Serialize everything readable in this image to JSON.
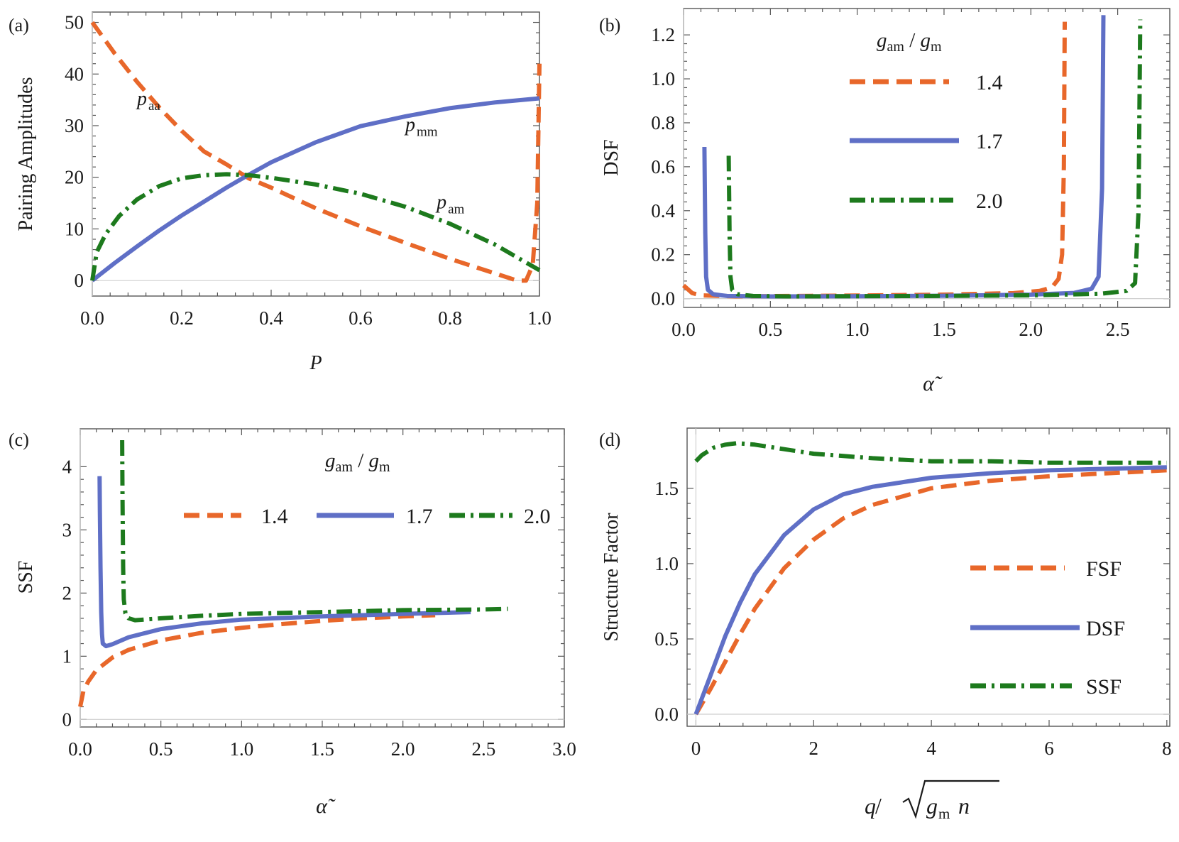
{
  "figure": {
    "panels": [
      "(a)",
      "(b)",
      "(c)",
      "(d)"
    ]
  },
  "chart_data": [
    {
      "type": "line",
      "panel": "(a)",
      "xlabel": "P",
      "ylabel": "Pairing Amplitudes",
      "xlim": [
        0,
        1
      ],
      "ylim": [
        -3,
        52
      ],
      "xticks": [
        0.0,
        0.2,
        0.4,
        0.6,
        0.8,
        1.0
      ],
      "xtick_labels": [
        "0.0",
        "0.2",
        "0.4",
        "0.6",
        "0.8",
        "1.0"
      ],
      "yticks": [
        0,
        10,
        20,
        30,
        40,
        50
      ],
      "ytick_labels": [
        "0",
        "10",
        "20",
        "30",
        "40",
        "50"
      ],
      "series": [
        {
          "name": "p_aa",
          "label_main": "p",
          "label_sub": "aa",
          "style": "dashed",
          "color": "#e8672a",
          "x": [
            0,
            0.05,
            0.1,
            0.15,
            0.2,
            0.25,
            0.3,
            0.35,
            0.4,
            0.5,
            0.6,
            0.7,
            0.8,
            0.9,
            0.95,
            0.97,
            0.985,
            0.995,
            1.0
          ],
          "y": [
            50,
            44,
            38.5,
            33.5,
            29,
            25,
            22.5,
            19.8,
            18,
            14,
            10.5,
            7.3,
            4.2,
            1.4,
            0,
            0,
            3,
            15,
            42
          ]
        },
        {
          "name": "p_mm",
          "label_main": "p",
          "label_sub": "mm",
          "style": "solid",
          "color": "#5f6fc6",
          "x": [
            0,
            0.05,
            0.1,
            0.15,
            0.2,
            0.25,
            0.3,
            0.35,
            0.4,
            0.5,
            0.6,
            0.7,
            0.8,
            0.9,
            1.0
          ],
          "y": [
            0,
            3.4,
            6.6,
            9.7,
            12.6,
            15.3,
            18,
            20.5,
            22.9,
            26.8,
            29.9,
            31.8,
            33.4,
            34.5,
            35.3
          ]
        },
        {
          "name": "p_am",
          "label_main": "p",
          "label_sub": "am",
          "style": "dashdot",
          "color": "#1d7a1d",
          "x": [
            0,
            0.01,
            0.03,
            0.06,
            0.1,
            0.15,
            0.2,
            0.25,
            0.3,
            0.35,
            0.4,
            0.5,
            0.6,
            0.7,
            0.8,
            0.9,
            0.95,
            0.98,
            1.0
          ],
          "y": [
            0,
            5.5,
            9,
            12.5,
            15.7,
            18.3,
            19.8,
            20.4,
            20.6,
            20.4,
            19.9,
            18.6,
            16.8,
            14.3,
            11,
            7,
            4.5,
            3,
            2
          ]
        }
      ],
      "annotations": [
        {
          "series": "p_aa",
          "x": 0.1,
          "y": 34
        },
        {
          "series": "p_mm",
          "x": 0.7,
          "y": 29
        },
        {
          "series": "p_am",
          "x": 0.77,
          "y": 14
        }
      ]
    },
    {
      "type": "line",
      "panel": "(b)",
      "xlabel": "α̃",
      "ylabel": "DSF",
      "xlim": [
        0,
        2.8
      ],
      "ylim": [
        -0.04,
        1.32
      ],
      "xticks": [
        0.0,
        0.5,
        1.0,
        1.5,
        2.0,
        2.5
      ],
      "xtick_labels": [
        "0.0",
        "0.5",
        "1.0",
        "1.5",
        "2.0",
        "2.5"
      ],
      "yticks": [
        0.0,
        0.2,
        0.4,
        0.6,
        0.8,
        1.0,
        1.2
      ],
      "ytick_labels": [
        "0.0",
        "0.2",
        "0.4",
        "0.6",
        "0.8",
        "1.0",
        "1.2"
      ],
      "legend_title": "g_am / g_m",
      "legend_title_parts": {
        "g1": "g",
        "s1": "am",
        "slash": " / ",
        "g2": "g",
        "s2": "m"
      },
      "legend_position": "top-center",
      "series": [
        {
          "name": "1.4",
          "style": "dashed",
          "color": "#e8672a",
          "x": [
            0,
            0.05,
            0.1,
            0.3,
            0.6,
            1.0,
            1.5,
            1.9,
            2.05,
            2.12,
            2.16,
            2.18,
            2.19,
            2.195
          ],
          "y": [
            0.06,
            0.025,
            0.015,
            0.01,
            0.012,
            0.014,
            0.018,
            0.025,
            0.035,
            0.05,
            0.09,
            0.2,
            0.6,
            1.26
          ]
        },
        {
          "name": "1.7",
          "style": "solid",
          "color": "#5f6fc6",
          "x": [
            0.12,
            0.125,
            0.13,
            0.14,
            0.17,
            0.25,
            0.5,
            1.0,
            1.5,
            2.0,
            2.25,
            2.35,
            2.39,
            2.41,
            2.418
          ],
          "y": [
            0.69,
            0.3,
            0.1,
            0.04,
            0.02,
            0.012,
            0.01,
            0.011,
            0.013,
            0.018,
            0.026,
            0.045,
            0.1,
            0.5,
            1.29
          ]
        },
        {
          "name": "2.0",
          "style": "dashdot",
          "color": "#1d7a1d",
          "x": [
            0.26,
            0.265,
            0.27,
            0.28,
            0.31,
            0.4,
            0.6,
            1.0,
            1.5,
            2.0,
            2.4,
            2.55,
            2.6,
            2.62,
            2.63
          ],
          "y": [
            0.65,
            0.3,
            0.1,
            0.04,
            0.02,
            0.012,
            0.01,
            0.011,
            0.012,
            0.015,
            0.022,
            0.035,
            0.07,
            0.4,
            1.27
          ]
        }
      ]
    },
    {
      "type": "line",
      "panel": "(c)",
      "xlabel": "α̃",
      "ylabel": "SSF",
      "xlim": [
        0,
        3.0
      ],
      "ylim": [
        -0.12,
        4.6
      ],
      "xticks": [
        0.0,
        0.5,
        1.0,
        1.5,
        2.0,
        2.5,
        3.0
      ],
      "xtick_labels": [
        "0.0",
        "0.5",
        "1.0",
        "1.5",
        "2.0",
        "2.5",
        "3.0"
      ],
      "yticks": [
        0,
        1,
        2,
        3,
        4
      ],
      "ytick_labels": [
        "0",
        "1",
        "2",
        "3",
        "4"
      ],
      "legend_title": "g_am / g_m",
      "legend_title_parts": {
        "g1": "g",
        "s1": "am",
        "slash": " / ",
        "g2": "g",
        "s2": "m"
      },
      "legend_position": "top-right",
      "series": [
        {
          "name": "1.4",
          "style": "dashed",
          "color": "#e8672a",
          "x": [
            0,
            0.02,
            0.05,
            0.1,
            0.2,
            0.3,
            0.5,
            0.75,
            1.0,
            1.25,
            1.5,
            1.75,
            2.0,
            2.2
          ],
          "y": [
            0.2,
            0.45,
            0.6,
            0.78,
            0.98,
            1.1,
            1.25,
            1.37,
            1.45,
            1.51,
            1.56,
            1.6,
            1.63,
            1.65
          ]
        },
        {
          "name": "1.7",
          "style": "solid",
          "color": "#5f6fc6",
          "x": [
            0.12,
            0.122,
            0.126,
            0.13,
            0.135,
            0.14,
            0.16,
            0.2,
            0.3,
            0.5,
            0.75,
            1.0,
            1.5,
            2.0,
            2.42
          ],
          "y": [
            3.85,
            3.3,
            2.4,
            1.7,
            1.35,
            1.2,
            1.16,
            1.19,
            1.3,
            1.43,
            1.52,
            1.58,
            1.63,
            1.67,
            1.7
          ]
        },
        {
          "name": "2.0",
          "style": "dashdot",
          "color": "#1d7a1d",
          "x": [
            0.26,
            0.262,
            0.266,
            0.27,
            0.28,
            0.3,
            0.34,
            0.5,
            0.75,
            1.0,
            1.5,
            2.0,
            2.5,
            2.65
          ],
          "y": [
            4.42,
            3.5,
            2.4,
            1.9,
            1.68,
            1.6,
            1.57,
            1.6,
            1.64,
            1.67,
            1.7,
            1.73,
            1.74,
            1.75
          ]
        }
      ]
    },
    {
      "type": "line",
      "panel": "(d)",
      "xlabel_parts": {
        "q": "q",
        "slash": " / ",
        "g": "g",
        "sub": "m",
        "n": " n"
      },
      "ylabel": "Structure Factor",
      "xlim": [
        -0.15,
        8.05
      ],
      "ylim": [
        -0.08,
        1.9
      ],
      "xticks": [
        0,
        2,
        4,
        6,
        8
      ],
      "xtick_labels": [
        "0",
        "2",
        "4",
        "6",
        "8"
      ],
      "yticks": [
        0.0,
        0.5,
        1.0,
        1.5
      ],
      "ytick_labels": [
        "0.0",
        "0.5",
        "1.0",
        "1.5"
      ],
      "legend_position": "bottom-right",
      "series": [
        {
          "name": "FSF",
          "style": "dashed",
          "color": "#e8672a",
          "x": [
            0,
            0.25,
            0.5,
            0.75,
            1,
            1.5,
            2,
            2.5,
            3,
            4,
            5,
            6,
            7,
            8
          ],
          "y": [
            0,
            0.17,
            0.35,
            0.53,
            0.7,
            0.97,
            1.16,
            1.3,
            1.39,
            1.5,
            1.55,
            1.58,
            1.6,
            1.62
          ]
        },
        {
          "name": "DSF",
          "style": "solid",
          "color": "#5f6fc6",
          "x": [
            0,
            0.25,
            0.5,
            0.75,
            1,
            1.5,
            2,
            2.5,
            3,
            4,
            5,
            6,
            7,
            8
          ],
          "y": [
            0,
            0.26,
            0.52,
            0.74,
            0.93,
            1.19,
            1.36,
            1.46,
            1.51,
            1.57,
            1.6,
            1.62,
            1.63,
            1.64
          ]
        },
        {
          "name": "SSF",
          "style": "dashdot",
          "color": "#1d7a1d",
          "x": [
            0,
            0.1,
            0.3,
            0.5,
            0.7,
            1,
            1.5,
            2,
            3,
            4,
            5,
            6,
            7,
            8
          ],
          "y": [
            1.68,
            1.72,
            1.77,
            1.79,
            1.8,
            1.79,
            1.76,
            1.73,
            1.7,
            1.68,
            1.68,
            1.67,
            1.67,
            1.67
          ]
        }
      ]
    }
  ]
}
